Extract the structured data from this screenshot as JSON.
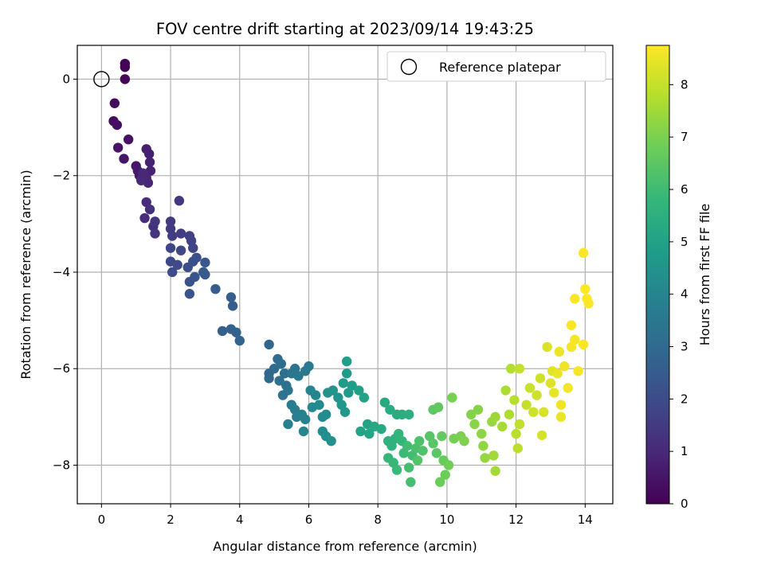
{
  "chart_data": {
    "type": "scatter",
    "title": "FOV centre drift starting at 2023/09/14 19:43:25",
    "xlabel": "Angular distance from reference (arcmin)",
    "ylabel": "Rotation from reference (arcmin)",
    "xlim": [
      -0.7,
      14.8
    ],
    "ylim": [
      -8.8,
      0.7
    ],
    "xticks": [
      0,
      2,
      4,
      6,
      8,
      10,
      12,
      14
    ],
    "yticks": [
      -8,
      -6,
      -4,
      -2,
      0
    ],
    "grid": true,
    "legend": {
      "position": "top-right",
      "entries": [
        {
          "label": "Reference platepar",
          "marker": "open-circle"
        }
      ]
    },
    "reference_point": {
      "x": 0,
      "y": 0
    },
    "colorbar": {
      "label": "Hours from first FF file",
      "colormap": "viridis",
      "range": [
        0,
        8.75
      ],
      "ticks": [
        0,
        1,
        2,
        3,
        4,
        5,
        6,
        7,
        8
      ]
    },
    "series": [
      {
        "color_variable": "hours",
        "points": [
          [
            0.68,
            0.32,
            0.05
          ],
          [
            0.68,
            0.25,
            0.1
          ],
          [
            0.68,
            0.0,
            0.15
          ],
          [
            0.38,
            -0.5,
            0.25
          ],
          [
            0.35,
            -0.87,
            0.3
          ],
          [
            0.45,
            -0.95,
            0.35
          ],
          [
            0.78,
            -1.25,
            0.4
          ],
          [
            0.48,
            -1.42,
            0.45
          ],
          [
            0.65,
            -1.65,
            0.5
          ],
          [
            1.0,
            -1.8,
            0.55
          ],
          [
            1.05,
            -1.9,
            0.6
          ],
          [
            1.1,
            -2.0,
            0.65
          ],
          [
            1.3,
            -1.45,
            0.7
          ],
          [
            1.38,
            -1.55,
            0.75
          ],
          [
            1.4,
            -1.72,
            0.8
          ],
          [
            1.42,
            -1.9,
            0.85
          ],
          [
            1.3,
            -2.05,
            0.9
          ],
          [
            1.35,
            -2.15,
            0.95
          ],
          [
            1.2,
            -1.95,
            1.0
          ],
          [
            1.15,
            -2.1,
            1.05
          ],
          [
            1.3,
            -2.55,
            1.1
          ],
          [
            1.25,
            -2.88,
            1.15
          ],
          [
            1.4,
            -2.7,
            1.2
          ],
          [
            1.5,
            -3.05,
            1.25
          ],
          [
            1.55,
            -3.2,
            1.3
          ],
          [
            1.55,
            -2.95,
            1.35
          ],
          [
            2.25,
            -2.52,
            1.4
          ],
          [
            2.0,
            -2.95,
            1.45
          ],
          [
            2.0,
            -3.1,
            1.5
          ],
          [
            2.05,
            -3.25,
            1.55
          ],
          [
            2.3,
            -3.2,
            1.6
          ],
          [
            2.55,
            -3.25,
            1.65
          ],
          [
            2.6,
            -3.35,
            1.7
          ],
          [
            2.65,
            -3.5,
            1.75
          ],
          [
            2.0,
            -3.5,
            1.8
          ],
          [
            2.3,
            -3.55,
            1.85
          ],
          [
            2.0,
            -3.78,
            1.9
          ],
          [
            2.2,
            -3.85,
            1.95
          ],
          [
            2.05,
            -4.0,
            2.0
          ],
          [
            2.5,
            -3.9,
            2.05
          ],
          [
            2.65,
            -3.78,
            2.1
          ],
          [
            2.75,
            -3.7,
            2.15
          ],
          [
            2.55,
            -4.2,
            2.2
          ],
          [
            2.55,
            -4.45,
            2.25
          ],
          [
            2.7,
            -4.1,
            2.3
          ],
          [
            3.0,
            -3.8,
            2.35
          ],
          [
            2.95,
            -4.0,
            2.4
          ],
          [
            3.0,
            -4.05,
            2.45
          ],
          [
            3.3,
            -4.35,
            2.5
          ],
          [
            3.75,
            -4.52,
            2.55
          ],
          [
            3.8,
            -4.7,
            2.6
          ],
          [
            3.5,
            -5.22,
            2.65
          ],
          [
            3.75,
            -5.18,
            2.7
          ],
          [
            3.9,
            -5.25,
            2.75
          ],
          [
            4.0,
            -5.42,
            2.8
          ],
          [
            4.85,
            -5.5,
            2.85
          ],
          [
            4.85,
            -6.1,
            2.9
          ],
          [
            4.85,
            -6.2,
            2.95
          ],
          [
            5.0,
            -6.0,
            3.0
          ],
          [
            5.1,
            -5.8,
            3.05
          ],
          [
            5.2,
            -5.9,
            3.1
          ],
          [
            5.3,
            -6.1,
            3.15
          ],
          [
            5.15,
            -6.25,
            3.2
          ],
          [
            5.35,
            -6.35,
            3.25
          ],
          [
            5.25,
            -6.55,
            3.3
          ],
          [
            5.4,
            -6.45,
            3.35
          ],
          [
            5.5,
            -6.1,
            3.4
          ],
          [
            5.6,
            -6.0,
            3.45
          ],
          [
            5.7,
            -6.15,
            3.5
          ],
          [
            5.9,
            -6.05,
            3.55
          ],
          [
            6.0,
            -5.95,
            3.6
          ],
          [
            5.5,
            -6.75,
            3.65
          ],
          [
            5.6,
            -6.85,
            3.7
          ],
          [
            5.65,
            -7.0,
            3.75
          ],
          [
            5.4,
            -7.15,
            3.8
          ],
          [
            5.8,
            -6.95,
            3.85
          ],
          [
            5.9,
            -7.05,
            3.9
          ],
          [
            5.85,
            -7.3,
            3.95
          ],
          [
            6.05,
            -6.45,
            4.0
          ],
          [
            6.2,
            -6.55,
            4.05
          ],
          [
            6.1,
            -6.8,
            4.1
          ],
          [
            6.3,
            -6.75,
            4.15
          ],
          [
            6.4,
            -7.0,
            4.2
          ],
          [
            6.5,
            -6.95,
            4.25
          ],
          [
            6.4,
            -7.3,
            4.3
          ],
          [
            6.5,
            -7.4,
            4.35
          ],
          [
            6.65,
            -7.5,
            4.4
          ],
          [
            6.55,
            -6.5,
            4.45
          ],
          [
            6.7,
            -6.45,
            4.5
          ],
          [
            6.85,
            -6.6,
            4.55
          ],
          [
            6.95,
            -6.75,
            4.6
          ],
          [
            7.05,
            -6.9,
            4.65
          ],
          [
            7.15,
            -6.5,
            4.7
          ],
          [
            7.0,
            -6.3,
            4.75
          ],
          [
            7.1,
            -6.1,
            4.8
          ],
          [
            7.1,
            -5.85,
            4.85
          ],
          [
            7.25,
            -6.35,
            4.9
          ],
          [
            7.45,
            -6.45,
            4.95
          ],
          [
            7.6,
            -6.6,
            5.0
          ],
          [
            7.5,
            -7.3,
            5.05
          ],
          [
            7.7,
            -7.15,
            5.1
          ],
          [
            7.75,
            -7.35,
            5.15
          ],
          [
            7.9,
            -7.2,
            5.2
          ],
          [
            8.1,
            -7.25,
            5.25
          ],
          [
            8.2,
            -6.7,
            5.3
          ],
          [
            8.35,
            -6.85,
            5.35
          ],
          [
            8.55,
            -6.95,
            5.4
          ],
          [
            8.7,
            -6.95,
            5.45
          ],
          [
            8.9,
            -6.95,
            5.5
          ],
          [
            8.3,
            -7.5,
            5.55
          ],
          [
            8.4,
            -7.6,
            5.6
          ],
          [
            8.5,
            -7.45,
            5.65
          ],
          [
            8.6,
            -7.35,
            5.7
          ],
          [
            8.7,
            -7.5,
            5.75
          ],
          [
            8.3,
            -7.85,
            5.8
          ],
          [
            8.45,
            -7.95,
            5.85
          ],
          [
            8.55,
            -8.1,
            5.9
          ],
          [
            8.75,
            -7.75,
            5.95
          ],
          [
            8.85,
            -7.6,
            6.0
          ],
          [
            9.0,
            -7.8,
            6.05
          ],
          [
            8.9,
            -8.05,
            6.1
          ],
          [
            8.95,
            -8.35,
            6.15
          ],
          [
            9.1,
            -7.65,
            6.2
          ],
          [
            9.2,
            -7.5,
            6.25
          ],
          [
            9.3,
            -7.7,
            6.3
          ],
          [
            9.15,
            -7.9,
            6.35
          ],
          [
            9.5,
            -7.4,
            6.4
          ],
          [
            9.6,
            -7.55,
            6.45
          ],
          [
            9.7,
            -7.75,
            6.5
          ],
          [
            9.6,
            -6.85,
            6.55
          ],
          [
            9.75,
            -6.8,
            6.6
          ],
          [
            9.85,
            -7.4,
            6.65
          ],
          [
            9.9,
            -7.9,
            6.7
          ],
          [
            9.8,
            -8.35,
            6.75
          ],
          [
            9.95,
            -8.2,
            6.8
          ],
          [
            10.05,
            -8.0,
            6.85
          ],
          [
            10.2,
            -7.45,
            6.9
          ],
          [
            10.15,
            -6.6,
            6.95
          ],
          [
            10.4,
            -7.4,
            7.0
          ],
          [
            10.5,
            -7.5,
            7.05
          ],
          [
            10.7,
            -6.95,
            7.1
          ],
          [
            10.9,
            -6.85,
            7.15
          ],
          [
            10.8,
            -7.15,
            7.2
          ],
          [
            11.0,
            -7.35,
            7.25
          ],
          [
            11.05,
            -7.6,
            7.3
          ],
          [
            11.1,
            -7.85,
            7.35
          ],
          [
            11.3,
            -7.1,
            7.4
          ],
          [
            11.4,
            -7.0,
            7.45
          ],
          [
            11.35,
            -7.8,
            7.5
          ],
          [
            11.4,
            -8.12,
            7.55
          ],
          [
            11.6,
            -7.2,
            7.6
          ],
          [
            11.7,
            -6.45,
            7.65
          ],
          [
            11.8,
            -6.95,
            7.7
          ],
          [
            11.85,
            -6.0,
            7.75
          ],
          [
            11.95,
            -6.65,
            7.8
          ],
          [
            12.0,
            -7.35,
            7.85
          ],
          [
            12.05,
            -7.65,
            7.9
          ],
          [
            12.1,
            -7.15,
            7.95
          ],
          [
            12.3,
            -6.75,
            8.0
          ],
          [
            12.4,
            -6.4,
            8.05
          ],
          [
            12.6,
            -6.55,
            8.1
          ],
          [
            12.7,
            -6.2,
            8.15
          ],
          [
            12.75,
            -7.38,
            8.2
          ],
          [
            12.8,
            -6.9,
            8.25
          ],
          [
            12.9,
            -5.55,
            8.3
          ],
          [
            13.0,
            -6.3,
            8.35
          ],
          [
            13.05,
            -6.05,
            8.4
          ],
          [
            13.1,
            -6.5,
            8.45
          ],
          [
            13.2,
            -6.1,
            8.5
          ],
          [
            13.25,
            -5.65,
            8.52
          ],
          [
            13.3,
            -6.75,
            8.55
          ],
          [
            13.4,
            -5.95,
            8.57
          ],
          [
            13.5,
            -6.4,
            8.6
          ],
          [
            13.6,
            -5.55,
            8.62
          ],
          [
            13.6,
            -5.1,
            8.64
          ],
          [
            13.7,
            -5.4,
            8.66
          ],
          [
            13.7,
            -4.55,
            8.68
          ],
          [
            13.95,
            -3.6,
            8.7
          ],
          [
            13.95,
            -5.5,
            8.7
          ],
          [
            14.0,
            -4.35,
            8.72
          ],
          [
            14.05,
            -4.55,
            8.73
          ],
          [
            14.1,
            -4.65,
            8.74
          ],
          [
            13.3,
            -7.0,
            8.5
          ],
          [
            12.5,
            -6.9,
            8.1
          ],
          [
            12.1,
            -6.0,
            8.0
          ],
          [
            13.8,
            -6.05,
            8.65
          ]
        ]
      }
    ]
  }
}
